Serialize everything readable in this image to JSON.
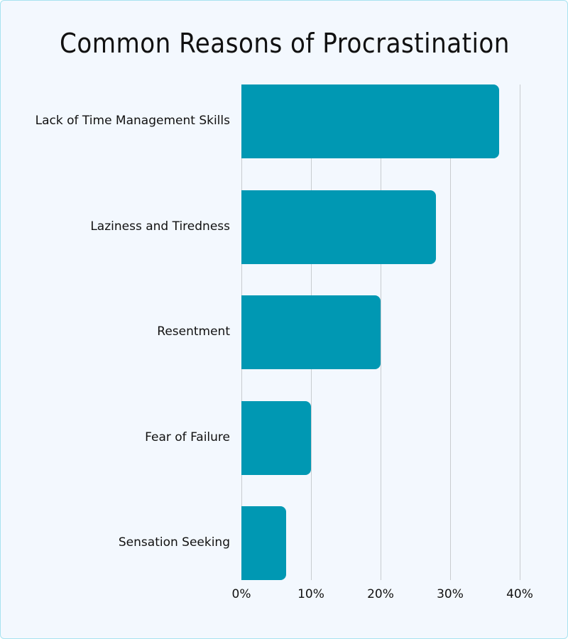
{
  "chart_data": {
    "type": "bar",
    "orientation": "horizontal",
    "title": "Common Reasons of Procrastination",
    "categories": [
      "Lack of Time Management Skills",
      "Laziness and Tiredness",
      "Resentment",
      "Fear of Failure",
      "Sensation Seeking"
    ],
    "values": [
      37,
      28,
      20,
      10,
      6.4
    ],
    "xlabel": "",
    "ylabel": "",
    "xlim": [
      0,
      40
    ],
    "x_ticks": [
      "0%",
      "10%",
      "20%",
      "30%",
      "40%"
    ],
    "grid": true,
    "bar_color": "#0098b3"
  }
}
